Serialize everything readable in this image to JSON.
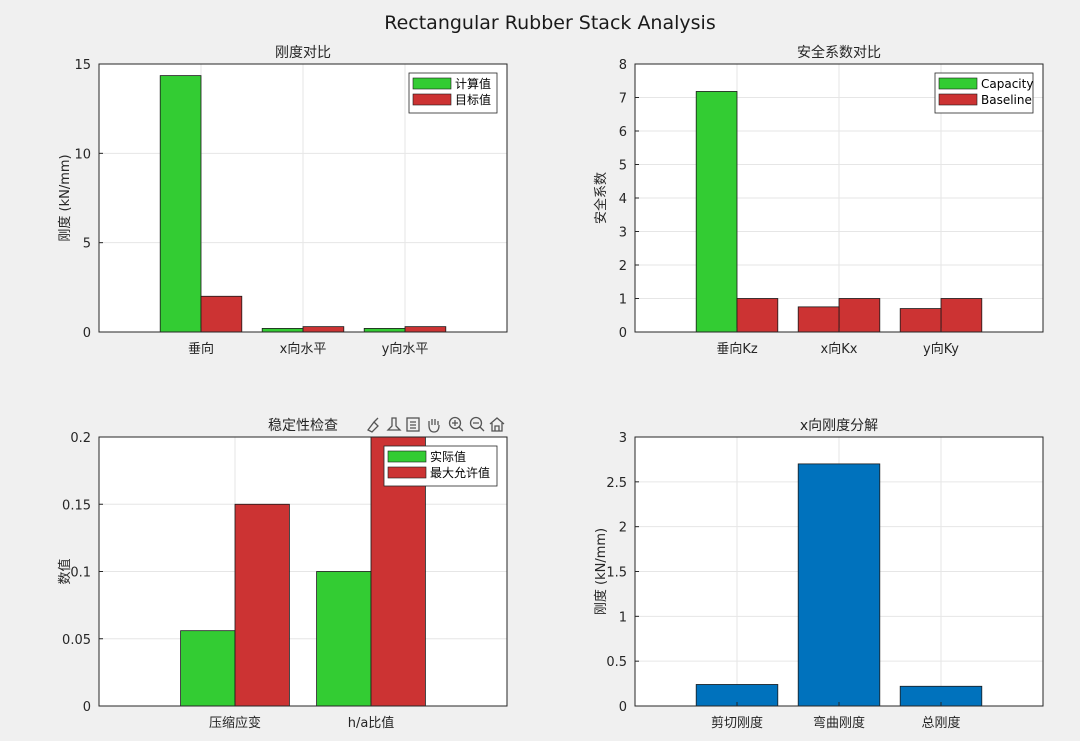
{
  "figure": {
    "title": "Rectangular Rubber Stack Analysis",
    "background": "#f0f0f0"
  },
  "toolbar": {
    "icons": [
      "brush-icon",
      "data-tip-icon",
      "legend-icon",
      "pan-icon",
      "zoom-in-icon",
      "zoom-out-icon",
      "home-icon"
    ]
  },
  "colors": {
    "green": "#33cc33",
    "red": "#cc3333",
    "blue": "#0072bd"
  },
  "chart_data": [
    {
      "type": "bar",
      "title": "刚度对比",
      "ylabel": "刚度 (kN/mm)",
      "xlabel": "",
      "categories": [
        "垂向",
        "x向水平",
        "y向水平"
      ],
      "series": [
        {
          "name": "计算值",
          "color": "#33cc33",
          "values": [
            14.35,
            0.2,
            0.2
          ]
        },
        {
          "name": "目标值",
          "color": "#cc3333",
          "values": [
            2.0,
            0.3,
            0.3
          ]
        }
      ],
      "ylim": [
        0,
        15
      ],
      "yticks": [
        0,
        5,
        10,
        15
      ],
      "xlim": [
        0,
        4
      ],
      "grid": true,
      "legend": "top-right"
    },
    {
      "type": "bar",
      "title": "安全系数对比",
      "ylabel": "安全系数",
      "xlabel": "",
      "categories": [
        "垂向Kz",
        "x向Kx",
        "y向Ky"
      ],
      "series": [
        {
          "name": "Capacity",
          "color": "#33cc33",
          "values": [
            7.18,
            null,
            null
          ]
        },
        {
          "name": "Baseline",
          "color": "#cc3333",
          "values": [
            1.0,
            1.0,
            1.0
          ]
        }
      ],
      "extra_bars": [
        {
          "category": "x向Kx",
          "color": "#cc3333",
          "value": 0.75
        },
        {
          "category": "y向Ky",
          "color": "#cc3333",
          "value": 0.7
        }
      ],
      "ylim": [
        0,
        8
      ],
      "yticks": [
        0,
        1,
        2,
        3,
        4,
        5,
        6,
        7,
        8
      ],
      "xlim": [
        0,
        4
      ],
      "grid": true,
      "legend": "top-right"
    },
    {
      "type": "bar",
      "title": "稳定性检查",
      "ylabel": "数值",
      "xlabel": "",
      "categories": [
        "压缩应变",
        "h/a比值"
      ],
      "series": [
        {
          "name": "实际值",
          "color": "#33cc33",
          "values": [
            0.056,
            0.1
          ]
        },
        {
          "name": "最大允许值",
          "color": "#cc3333",
          "values": [
            0.15,
            0.2
          ]
        }
      ],
      "ylim": [
        0,
        0.2
      ],
      "yticks": [
        0,
        0.05,
        0.1,
        0.15,
        0.2
      ],
      "yticklabels": [
        "0",
        "0.05",
        "0.1",
        "0.15",
        "0.2"
      ],
      "xlim": [
        0,
        3
      ],
      "grid": true,
      "legend": "top-right"
    },
    {
      "type": "bar",
      "title": "x向刚度分解",
      "ylabel": "刚度 (kN/mm)",
      "xlabel": "",
      "categories": [
        "剪切刚度",
        "弯曲刚度",
        "总刚度"
      ],
      "series": [
        {
          "color": "#0072bd",
          "values": [
            0.24,
            2.7,
            0.22
          ]
        }
      ],
      "ylim": [
        0,
        3
      ],
      "yticks": [
        0,
        0.5,
        1,
        1.5,
        2,
        2.5,
        3
      ],
      "yticklabels": [
        "0",
        "0.5",
        "1",
        "1.5",
        "2",
        "2.5",
        "3"
      ],
      "xlim": [
        0,
        4
      ],
      "grid": true,
      "legend": "none"
    }
  ]
}
